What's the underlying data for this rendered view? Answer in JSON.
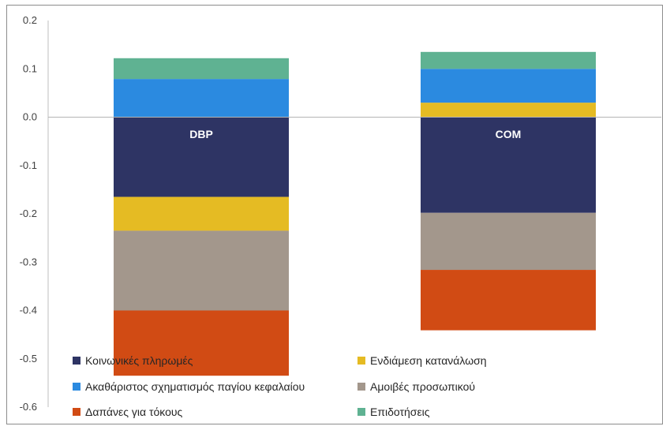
{
  "chart_data": {
    "type": "bar",
    "stacked": true,
    "categories": [
      "DBP",
      "COM"
    ],
    "series": [
      {
        "name": "Κοινωνικές πληρωμές",
        "color": "#2e3464",
        "values": [
          -0.165,
          -0.198
        ]
      },
      {
        "name": "Ενδιάμεση κατανάλωση",
        "color": "#e5bb23",
        "values": [
          -0.07,
          0.03
        ]
      },
      {
        "name": "Ακαθάριστος σχηματισμός παγίου κεφαλαίου",
        "color": "#2b8ae0",
        "values": [
          0.079,
          0.07
        ]
      },
      {
        "name": "Αμοιβές προσωπικού",
        "color": "#a3978c",
        "values": [
          -0.165,
          -0.118
        ]
      },
      {
        "name": "Δαπάνες για τόκους",
        "color": "#d14b14",
        "values": [
          -0.135,
          -0.125
        ]
      },
      {
        "name": "Επιδοτήσεις",
        "color": "#5fb292",
        "values": [
          0.043,
          0.035
        ]
      }
    ],
    "yticks": [
      "0.2",
      "0.1",
      "0.0",
      "-0.1",
      "-0.2",
      "-0.3",
      "-0.4",
      "-0.5",
      "-0.6"
    ],
    "ylim": [
      -0.6,
      0.2
    ],
    "title": "",
    "xlabel": "",
    "ylabel": "",
    "grid": false,
    "legend_position": "bottom"
  }
}
